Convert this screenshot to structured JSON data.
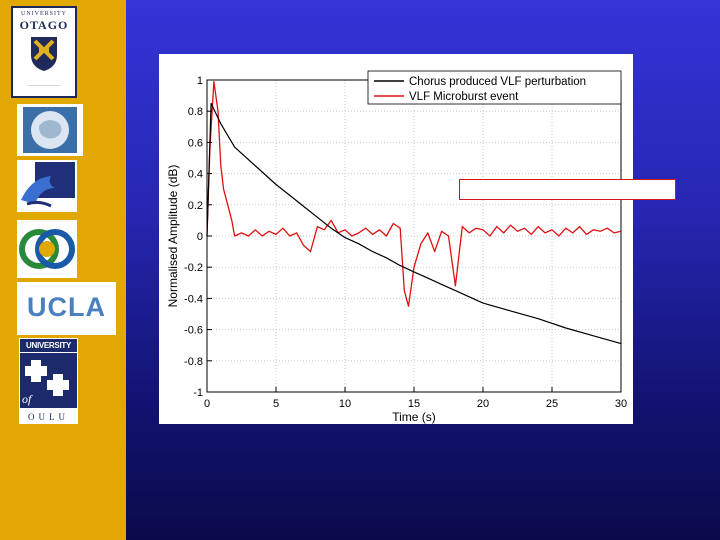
{
  "sidebar": {
    "logos": {
      "otago_line1": "UNIVERSITY",
      "otago_line2": "OTAGO",
      "ucla": "UCLA",
      "oulu_top": "UNIVERSITY",
      "oulu_of": "of",
      "oulu_bottom": "OULU"
    },
    "icons": [
      "otago-crest-icon",
      "antarctic-globe-icon",
      "dolphin-icon",
      "interlocking-rings-icon",
      "oulu-cross-pattern-icon"
    ]
  },
  "colors": {
    "sidebar": "#e0a800",
    "background": "#2a2ab8",
    "series_black": "#000000",
    "series_red": "#e01010"
  },
  "chart_data": {
    "type": "line",
    "title": "",
    "xlabel": "Time (s)",
    "ylabel": "Normalised Amplitude (dB)",
    "xlim": [
      0,
      30
    ],
    "ylim": [
      -1,
      1
    ],
    "xticks": [
      0,
      5,
      10,
      15,
      20,
      25,
      30
    ],
    "yticks": [
      -1,
      -0.8,
      -0.6,
      -0.4,
      -0.2,
      0,
      0.2,
      0.4,
      0.6,
      0.8,
      1
    ],
    "xtick_labels": [
      "0",
      "5",
      "10",
      "15",
      "20",
      "25",
      "30"
    ],
    "ytick_labels": [
      "-1",
      "-0.8",
      "-0.6",
      "-0.4",
      "-0.2",
      "0",
      "0.2",
      "0.4",
      "0.6",
      "0.8",
      "1"
    ],
    "legend_position": "top-right",
    "series": [
      {
        "name": "Chorus produced VLF perturbation",
        "color": "#000000",
        "x": [
          0,
          0.3,
          1,
          2,
          3,
          4,
          5,
          6,
          7,
          8,
          9,
          10,
          11,
          12,
          13,
          14,
          15,
          16,
          17,
          18,
          19,
          20,
          22,
          24,
          26,
          28,
          30
        ],
        "y": [
          0,
          0.85,
          0.72,
          0.57,
          0.49,
          0.41,
          0.33,
          0.26,
          0.19,
          0.12,
          0.05,
          -0.01,
          -0.05,
          -0.1,
          -0.14,
          -0.19,
          -0.23,
          -0.27,
          -0.31,
          -0.35,
          -0.39,
          -0.43,
          -0.48,
          -0.53,
          -0.59,
          -0.64,
          -0.69
        ]
      },
      {
        "name": "VLF Microburst event",
        "color": "#e01010",
        "x": [
          0,
          0.2,
          0.5,
          0.8,
          1.0,
          1.2,
          1.5,
          1.8,
          2.0,
          2.5,
          3,
          3.5,
          4,
          4.5,
          5,
          5.5,
          6,
          6.5,
          7,
          7.5,
          8,
          8.5,
          9,
          9.5,
          10,
          10.5,
          11,
          11.5,
          12,
          12.5,
          13,
          13.5,
          14,
          14.3,
          14.6,
          15,
          15.5,
          16,
          16.5,
          17,
          17.5,
          18,
          18.5,
          19,
          19.5,
          20,
          20.5,
          21,
          21.5,
          22,
          22.5,
          23,
          23.5,
          24,
          24.5,
          25,
          25.5,
          26,
          26.5,
          27,
          27.5,
          28,
          28.5,
          29,
          29.5,
          30
        ],
        "y": [
          0.0,
          0.55,
          0.99,
          0.8,
          0.45,
          0.3,
          0.2,
          0.1,
          0.0,
          0.02,
          0.0,
          0.04,
          0.0,
          0.03,
          0.01,
          0.05,
          0.0,
          0.02,
          -0.06,
          -0.1,
          0.06,
          0.04,
          0.1,
          0.02,
          0.04,
          0.0,
          0.02,
          0.05,
          0.01,
          0.04,
          0.0,
          0.08,
          0.05,
          -0.35,
          -0.45,
          -0.2,
          -0.05,
          0.02,
          -0.1,
          0.03,
          0.0,
          -0.32,
          0.06,
          0.02,
          0.05,
          0.04,
          0.0,
          0.06,
          0.02,
          0.07,
          0.03,
          0.05,
          0.01,
          0.06,
          0.02,
          0.04,
          0.0,
          0.05,
          0.02,
          0.06,
          0.01,
          0.04,
          0.03,
          0.05,
          0.02,
          0.03
        ]
      }
    ]
  }
}
